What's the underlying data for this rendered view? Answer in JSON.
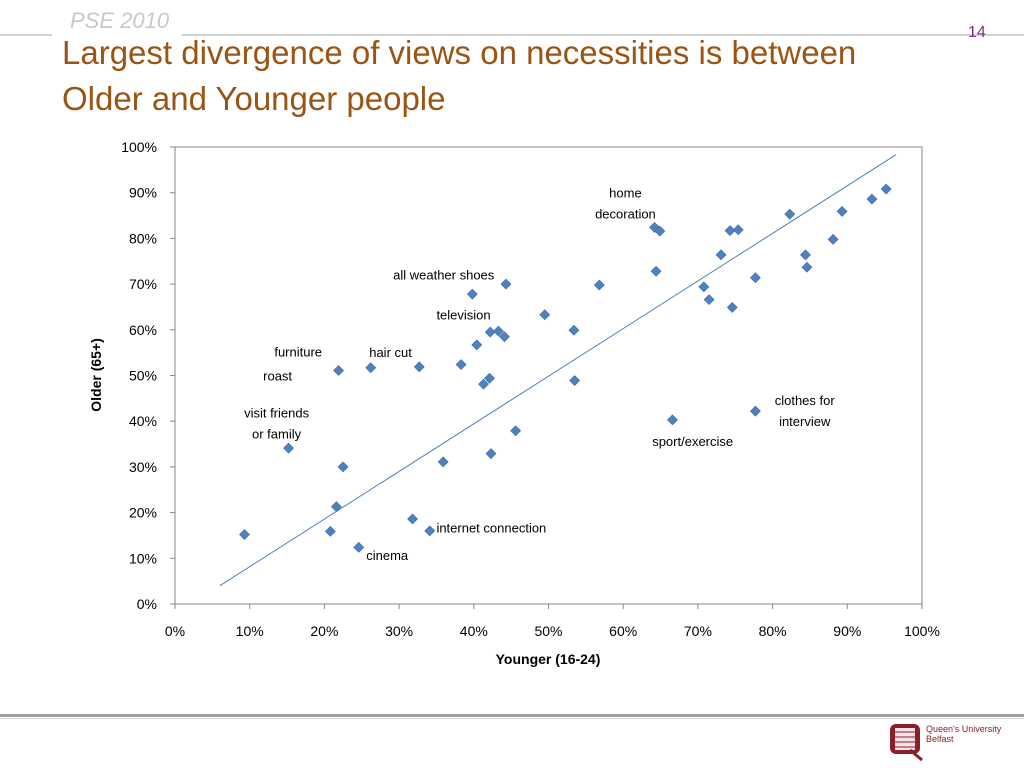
{
  "header": {
    "course_tag": "PSE 2010",
    "slide_number": "14",
    "title_line1": "Largest divergence of views on necessities is between",
    "title_line2": "Older and Younger people"
  },
  "footer": {
    "logo_line1": "Queen's University",
    "logo_line2": "Belfast",
    "brand_color": "#8a1f2a"
  },
  "colors": {
    "title": "#9a5414",
    "markers": "#4f81bd",
    "trend_line": "#4f81bd"
  },
  "chart_data": {
    "type": "scatter",
    "xlabel": "Younger (16-24)",
    "ylabel": "Older (65+)",
    "xlim": [
      0,
      100
    ],
    "ylim": [
      0,
      100
    ],
    "x_ticks": [
      "0%",
      "10%",
      "20%",
      "30%",
      "40%",
      "50%",
      "60%",
      "70%",
      "80%",
      "90%",
      "100%"
    ],
    "y_ticks": [
      "0%",
      "10%",
      "20%",
      "30%",
      "40%",
      "50%",
      "60%",
      "70%",
      "80%",
      "90%",
      "100%"
    ],
    "grid": false,
    "legend": "none",
    "marker": "diamond",
    "points": [
      {
        "x": 9.3,
        "y": 15.2
      },
      {
        "x": 15.2,
        "y": 34.1
      },
      {
        "x": 20.8,
        "y": 15.9
      },
      {
        "x": 21.6,
        "y": 21.3
      },
      {
        "x": 21.9,
        "y": 51.1
      },
      {
        "x": 22.5,
        "y": 30.0
      },
      {
        "x": 24.6,
        "y": 12.4
      },
      {
        "x": 26.2,
        "y": 51.7
      },
      {
        "x": 31.8,
        "y": 18.6
      },
      {
        "x": 32.7,
        "y": 51.9
      },
      {
        "x": 34.1,
        "y": 16.0
      },
      {
        "x": 35.9,
        "y": 31.1
      },
      {
        "x": 38.3,
        "y": 52.4
      },
      {
        "x": 39.8,
        "y": 67.8
      },
      {
        "x": 40.4,
        "y": 56.7
      },
      {
        "x": 41.3,
        "y": 48.1
      },
      {
        "x": 42.1,
        "y": 49.4
      },
      {
        "x": 42.2,
        "y": 59.5
      },
      {
        "x": 42.3,
        "y": 32.9
      },
      {
        "x": 43.3,
        "y": 59.7
      },
      {
        "x": 44.1,
        "y": 58.5
      },
      {
        "x": 44.3,
        "y": 70.0
      },
      {
        "x": 45.6,
        "y": 37.9
      },
      {
        "x": 49.5,
        "y": 63.3
      },
      {
        "x": 53.4,
        "y": 59.9
      },
      {
        "x": 53.5,
        "y": 48.9
      },
      {
        "x": 56.8,
        "y": 69.8
      },
      {
        "x": 64.2,
        "y": 82.4
      },
      {
        "x": 64.4,
        "y": 72.8
      },
      {
        "x": 64.9,
        "y": 81.6
      },
      {
        "x": 66.6,
        "y": 40.3
      },
      {
        "x": 70.8,
        "y": 69.4
      },
      {
        "x": 71.5,
        "y": 66.6
      },
      {
        "x": 73.1,
        "y": 76.4
      },
      {
        "x": 74.3,
        "y": 81.7
      },
      {
        "x": 74.6,
        "y": 64.9
      },
      {
        "x": 75.4,
        "y": 81.9
      },
      {
        "x": 77.7,
        "y": 71.4
      },
      {
        "x": 77.7,
        "y": 42.2
      },
      {
        "x": 82.3,
        "y": 85.3
      },
      {
        "x": 84.4,
        "y": 76.4
      },
      {
        "x": 84.6,
        "y": 73.7
      },
      {
        "x": 88.1,
        "y": 79.8
      },
      {
        "x": 89.3,
        "y": 85.9
      },
      {
        "x": 93.3,
        "y": 88.6
      },
      {
        "x": 95.2,
        "y": 90.8
      }
    ],
    "trendline": {
      "x": [
        6.0,
        96.5
      ],
      "y": [
        4.0,
        98.3
      ]
    },
    "annotations": [
      {
        "lines": [
          "home",
          "decoration"
        ],
        "x": 60.3,
        "y": 89.0,
        "anchor": "middle"
      },
      {
        "lines": [
          "all weather shoes"
        ],
        "x": 29.2,
        "y": 71.0,
        "anchor": "start"
      },
      {
        "lines": [
          "television"
        ],
        "x": 35.0,
        "y": 62.2,
        "anchor": "start"
      },
      {
        "lines": [
          "furniture"
        ],
        "x": 13.3,
        "y": 54.2,
        "anchor": "start"
      },
      {
        "lines": [
          "hair cut"
        ],
        "x": 26.0,
        "y": 54.1,
        "anchor": "start"
      },
      {
        "lines": [
          "roast"
        ],
        "x": 11.8,
        "y": 48.9,
        "anchor": "start"
      },
      {
        "lines": [
          "visit friends",
          "or family"
        ],
        "x": 13.6,
        "y": 40.8,
        "anchor": "middle"
      },
      {
        "lines": [
          "clothes for",
          "interview"
        ],
        "x": 84.3,
        "y": 43.5,
        "anchor": "middle"
      },
      {
        "lines": [
          "sport/exercise"
        ],
        "x": 69.3,
        "y": 34.6,
        "anchor": "middle"
      },
      {
        "lines": [
          "internet connection"
        ],
        "x": 35.0,
        "y": 15.6,
        "anchor": "start"
      },
      {
        "lines": [
          "cinema"
        ],
        "x": 25.6,
        "y": 9.6,
        "anchor": "start"
      }
    ]
  }
}
